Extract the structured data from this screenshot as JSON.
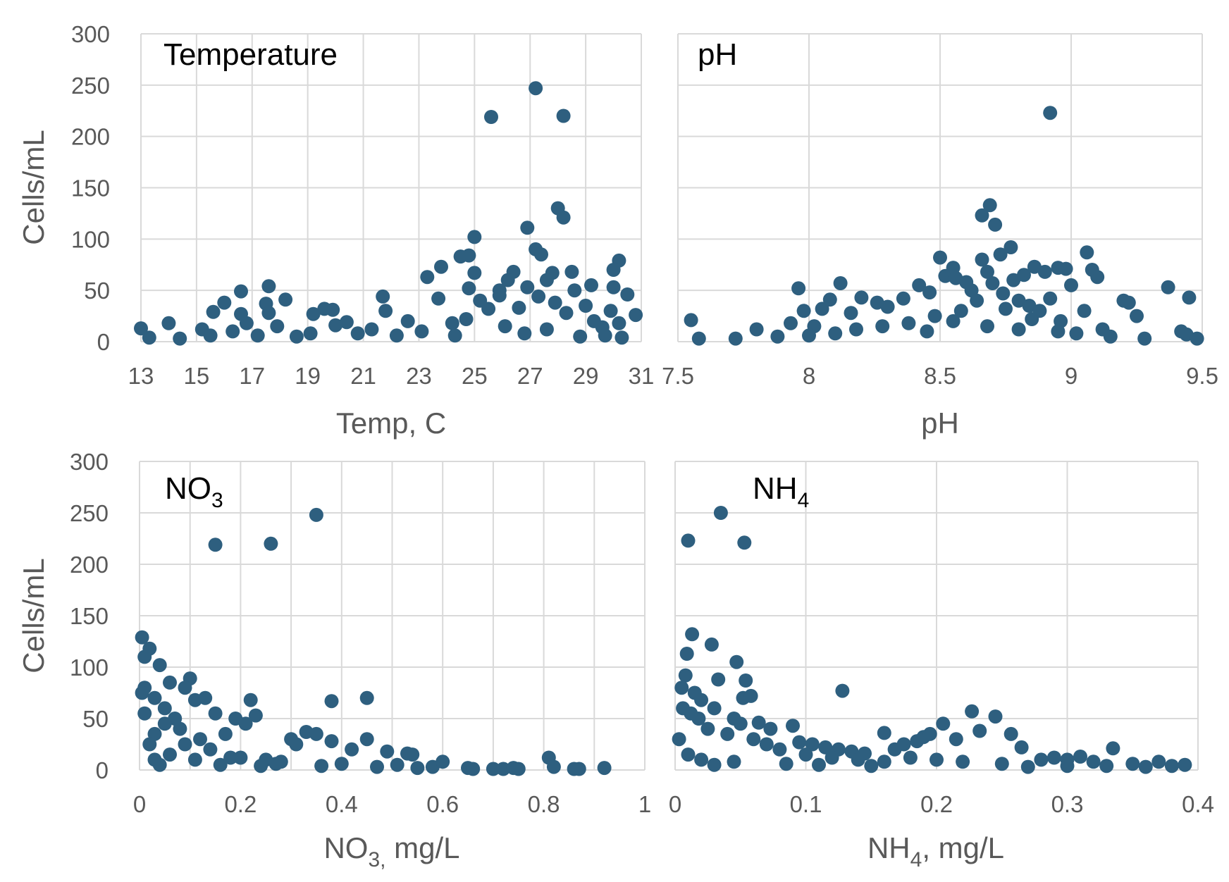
{
  "ylabel": "Cells/mL",
  "colors": {
    "marker": "#2e5f7f",
    "grid": "#d9d9d9",
    "tick": "#595959"
  },
  "chart_data": [
    {
      "type": "scatter",
      "title": "Temperature",
      "xlabel": "Temp, C",
      "ylabel": "Cells/mL",
      "xlim": [
        13,
        31
      ],
      "ylim": [
        0,
        300
      ],
      "xticks": [
        13,
        15,
        17,
        19,
        21,
        23,
        25,
        27,
        29,
        31
      ],
      "yticks": [
        0,
        50,
        100,
        150,
        200,
        250,
        300
      ],
      "grid": true,
      "points": [
        [
          27.2,
          247
        ],
        [
          25.6,
          219
        ],
        [
          28.2,
          220
        ],
        [
          28,
          130
        ],
        [
          28.2,
          121
        ],
        [
          26.9,
          111
        ],
        [
          27.2,
          90
        ],
        [
          27.4,
          85
        ],
        [
          25,
          102
        ],
        [
          24.5,
          83
        ],
        [
          24.8,
          84
        ],
        [
          23.8,
          73
        ],
        [
          23.3,
          63
        ],
        [
          25,
          67
        ],
        [
          26.4,
          68
        ],
        [
          27.8,
          67
        ],
        [
          28.5,
          68
        ],
        [
          29.2,
          55
        ],
        [
          30.2,
          79
        ],
        [
          30.5,
          46
        ],
        [
          30.8,
          26
        ],
        [
          30,
          70
        ],
        [
          30,
          53
        ],
        [
          26.2,
          60
        ],
        [
          25.9,
          50
        ],
        [
          24.8,
          52
        ],
        [
          23.7,
          42
        ],
        [
          22.6,
          20
        ],
        [
          21.7,
          44
        ],
        [
          21.8,
          30
        ],
        [
          19.9,
          31
        ],
        [
          19.6,
          32
        ],
        [
          20,
          16
        ],
        [
          20.4,
          19
        ],
        [
          19.2,
          27
        ],
        [
          18.2,
          41
        ],
        [
          17.6,
          54
        ],
        [
          17.5,
          37
        ],
        [
          17.6,
          28
        ],
        [
          17.9,
          15
        ],
        [
          16.6,
          49
        ],
        [
          16.6,
          27
        ],
        [
          16.8,
          18
        ],
        [
          16,
          38
        ],
        [
          15.6,
          29
        ],
        [
          15.2,
          12
        ],
        [
          14,
          18
        ],
        [
          13,
          13
        ],
        [
          13.3,
          4
        ],
        [
          14.4,
          3
        ],
        [
          15.5,
          6
        ],
        [
          16.3,
          10
        ],
        [
          18.6,
          5
        ],
        [
          20.8,
          8
        ],
        [
          22.2,
          6
        ],
        [
          23.1,
          10
        ],
        [
          24.2,
          18
        ],
        [
          24.7,
          22
        ],
        [
          25.5,
          32
        ],
        [
          25.2,
          40
        ],
        [
          25.9,
          45
        ],
        [
          26.6,
          33
        ],
        [
          26.9,
          53
        ],
        [
          27.3,
          44
        ],
        [
          27.6,
          60
        ],
        [
          27.9,
          38
        ],
        [
          28.3,
          28
        ],
        [
          28.6,
          50
        ],
        [
          29,
          35
        ],
        [
          29.3,
          20
        ],
        [
          29.6,
          14
        ],
        [
          29.9,
          30
        ],
        [
          30.2,
          18
        ],
        [
          26.1,
          15
        ],
        [
          26.8,
          8
        ],
        [
          27.6,
          12
        ],
        [
          28.8,
          5
        ],
        [
          29.7,
          6
        ],
        [
          30.3,
          4
        ],
        [
          24.3,
          6
        ],
        [
          21.3,
          12
        ],
        [
          19.1,
          8
        ],
        [
          17.2,
          6
        ]
      ]
    },
    {
      "type": "scatter",
      "title": "pH",
      "xlabel": "pH",
      "ylabel": "",
      "xlim": [
        7.5,
        9.5
      ],
      "ylim": [
        0,
        300
      ],
      "xticks": [
        7.5,
        8,
        8.5,
        9,
        9.5
      ],
      "yticks": [
        0,
        50,
        100,
        150,
        200,
        250,
        300
      ],
      "grid": true,
      "points": [
        [
          8.92,
          223
        ],
        [
          8.69,
          133
        ],
        [
          8.66,
          123
        ],
        [
          8.71,
          114
        ],
        [
          8.77,
          92
        ],
        [
          8.66,
          80
        ],
        [
          8.5,
          82
        ],
        [
          8.55,
          72
        ],
        [
          8.68,
          68
        ],
        [
          8.73,
          85
        ],
        [
          8.78,
          60
        ],
        [
          8.82,
          65
        ],
        [
          8.86,
          73
        ],
        [
          8.9,
          68
        ],
        [
          8.95,
          72
        ],
        [
          8.98,
          71
        ],
        [
          9.06,
          87
        ],
        [
          9.08,
          70
        ],
        [
          9.1,
          63
        ],
        [
          9.0,
          55
        ],
        [
          9.05,
          30
        ],
        [
          9.2,
          40
        ],
        [
          9.22,
          38
        ],
        [
          9.25,
          25
        ],
        [
          9.37,
          53
        ],
        [
          9.45,
          43
        ],
        [
          9.42,
          10
        ],
        [
          9.44,
          7
        ],
        [
          9.48,
          3
        ],
        [
          9.28,
          3
        ],
        [
          9.15,
          5
        ],
        [
          7.55,
          21
        ],
        [
          7.58,
          3
        ],
        [
          7.72,
          3
        ],
        [
          7.8,
          12
        ],
        [
          7.88,
          5
        ],
        [
          7.93,
          18
        ],
        [
          7.96,
          52
        ],
        [
          7.98,
          30
        ],
        [
          8.02,
          15
        ],
        [
          8.05,
          32
        ],
        [
          8.08,
          41
        ],
        [
          8.12,
          57
        ],
        [
          8.16,
          28
        ],
        [
          8.2,
          43
        ],
        [
          8.26,
          38
        ],
        [
          8.3,
          34
        ],
        [
          8.36,
          42
        ],
        [
          8.42,
          55
        ],
        [
          8.46,
          48
        ],
        [
          8.52,
          64
        ],
        [
          8.56,
          62
        ],
        [
          8.6,
          58
        ],
        [
          8.62,
          50
        ],
        [
          8.7,
          57
        ],
        [
          8.74,
          47
        ],
        [
          8.8,
          40
        ],
        [
          8.84,
          35
        ],
        [
          8.88,
          30
        ],
        [
          8.92,
          42
        ],
        [
          8.96,
          20
        ],
        [
          8.58,
          30
        ],
        [
          8.48,
          25
        ],
        [
          8.38,
          18
        ],
        [
          8.28,
          15
        ],
        [
          8.18,
          12
        ],
        [
          8.1,
          8
        ],
        [
          8.0,
          6
        ],
        [
          8.64,
          40
        ],
        [
          8.75,
          32
        ],
        [
          8.85,
          22
        ],
        [
          8.95,
          10
        ],
        [
          9.02,
          8
        ],
        [
          9.12,
          12
        ],
        [
          8.55,
          20
        ],
        [
          8.45,
          10
        ],
        [
          8.68,
          15
        ],
        [
          8.8,
          12
        ]
      ]
    },
    {
      "type": "scatter",
      "title": "NO3",
      "xlabel": "NO3, mg/L",
      "ylabel": "Cells/mL",
      "xlim": [
        0,
        1
      ],
      "ylim": [
        0,
        300
      ],
      "xticks": [
        0,
        0.2,
        0.4,
        0.6,
        0.8,
        1
      ],
      "yticks": [
        0,
        50,
        100,
        150,
        200,
        250,
        300
      ],
      "grid": true,
      "points": [
        [
          0.35,
          248
        ],
        [
          0.26,
          220
        ],
        [
          0.15,
          219
        ],
        [
          0.005,
          129
        ],
        [
          0.02,
          118
        ],
        [
          0.01,
          110
        ],
        [
          0.04,
          102
        ],
        [
          0.06,
          85
        ],
        [
          0.1,
          89
        ],
        [
          0.09,
          80
        ],
        [
          0.11,
          68
        ],
        [
          0.13,
          70
        ],
        [
          0.01,
          80
        ],
        [
          0.005,
          75
        ],
        [
          0.03,
          70
        ],
        [
          0.05,
          60
        ],
        [
          0.15,
          55
        ],
        [
          0.22,
          68
        ],
        [
          0.23,
          53
        ],
        [
          0.19,
          50
        ],
        [
          0.21,
          45
        ],
        [
          0.17,
          35
        ],
        [
          0.38,
          67
        ],
        [
          0.45,
          70
        ],
        [
          0.33,
          37
        ],
        [
          0.35,
          35
        ],
        [
          0.3,
          30
        ],
        [
          0.31,
          25
        ],
        [
          0.38,
          28
        ],
        [
          0.45,
          30
        ],
        [
          0.42,
          20
        ],
        [
          0.49,
          18
        ],
        [
          0.53,
          16
        ],
        [
          0.54,
          15
        ],
        [
          0.58,
          3
        ],
        [
          0.6,
          8
        ],
        [
          0.65,
          2
        ],
        [
          0.66,
          1
        ],
        [
          0.7,
          1
        ],
        [
          0.72,
          1
        ],
        [
          0.74,
          2
        ],
        [
          0.75,
          1
        ],
        [
          0.81,
          12
        ],
        [
          0.82,
          3
        ],
        [
          0.86,
          1
        ],
        [
          0.87,
          1
        ],
        [
          0.92,
          2
        ],
        [
          0.55,
          2
        ],
        [
          0.51,
          5
        ],
        [
          0.4,
          6
        ],
        [
          0.28,
          8
        ],
        [
          0.25,
          10
        ],
        [
          0.2,
          12
        ],
        [
          0.14,
          20
        ],
        [
          0.12,
          30
        ],
        [
          0.08,
          40
        ],
        [
          0.07,
          50
        ],
        [
          0.05,
          45
        ],
        [
          0.03,
          35
        ],
        [
          0.02,
          25
        ],
        [
          0.01,
          55
        ],
        [
          0.06,
          15
        ],
        [
          0.09,
          25
        ],
        [
          0.11,
          10
        ],
        [
          0.16,
          5
        ],
        [
          0.24,
          4
        ],
        [
          0.36,
          4
        ],
        [
          0.47,
          3
        ],
        [
          0.03,
          10
        ],
        [
          0.04,
          5
        ],
        [
          0.18,
          12
        ],
        [
          0.27,
          6
        ]
      ]
    },
    {
      "type": "scatter",
      "title": "NH4",
      "xlabel": "NH4, mg/L",
      "ylabel": "",
      "xlim": [
        0,
        0.4
      ],
      "ylim": [
        0,
        300
      ],
      "xticks": [
        0,
        0.1,
        0.2,
        0.3,
        0.4
      ],
      "yticks": [
        0,
        50,
        100,
        150,
        200,
        250,
        300
      ],
      "grid": true,
      "points": [
        [
          0.035,
          250
        ],
        [
          0.01,
          223
        ],
        [
          0.053,
          221
        ],
        [
          0.013,
          132
        ],
        [
          0.028,
          122
        ],
        [
          0.009,
          113
        ],
        [
          0.047,
          105
        ],
        [
          0.008,
          92
        ],
        [
          0.033,
          88
        ],
        [
          0.054,
          87
        ],
        [
          0.052,
          70
        ],
        [
          0.058,
          72
        ],
        [
          0.015,
          75
        ],
        [
          0.005,
          80
        ],
        [
          0.02,
          68
        ],
        [
          0.03,
          60
        ],
        [
          0.045,
          50
        ],
        [
          0.05,
          45
        ],
        [
          0.064,
          46
        ],
        [
          0.073,
          40
        ],
        [
          0.09,
          43
        ],
        [
          0.128,
          77
        ],
        [
          0.095,
          27
        ],
        [
          0.105,
          25
        ],
        [
          0.115,
          22
        ],
        [
          0.125,
          20
        ],
        [
          0.135,
          18
        ],
        [
          0.145,
          16
        ],
        [
          0.16,
          36
        ],
        [
          0.168,
          20
        ],
        [
          0.175,
          25
        ],
        [
          0.185,
          28
        ],
        [
          0.19,
          32
        ],
        [
          0.195,
          35
        ],
        [
          0.205,
          45
        ],
        [
          0.215,
          30
        ],
        [
          0.227,
          57
        ],
        [
          0.233,
          38
        ],
        [
          0.245,
          52
        ],
        [
          0.257,
          35
        ],
        [
          0.265,
          22
        ],
        [
          0.28,
          10
        ],
        [
          0.29,
          12
        ],
        [
          0.3,
          10
        ],
        [
          0.31,
          13
        ],
        [
          0.32,
          8
        ],
        [
          0.335,
          21
        ],
        [
          0.35,
          6
        ],
        [
          0.37,
          8
        ],
        [
          0.38,
          4
        ],
        [
          0.39,
          5
        ],
        [
          0.36,
          3
        ],
        [
          0.33,
          4
        ],
        [
          0.3,
          4
        ],
        [
          0.27,
          3
        ],
        [
          0.25,
          6
        ],
        [
          0.22,
          8
        ],
        [
          0.2,
          10
        ],
        [
          0.18,
          12
        ],
        [
          0.16,
          8
        ],
        [
          0.14,
          10
        ],
        [
          0.12,
          12
        ],
        [
          0.1,
          15
        ],
        [
          0.08,
          20
        ],
        [
          0.07,
          25
        ],
        [
          0.06,
          30
        ],
        [
          0.04,
          35
        ],
        [
          0.025,
          40
        ],
        [
          0.018,
          50
        ],
        [
          0.012,
          55
        ],
        [
          0.006,
          60
        ],
        [
          0.003,
          30
        ],
        [
          0.01,
          15
        ],
        [
          0.02,
          10
        ],
        [
          0.03,
          5
        ],
        [
          0.045,
          8
        ],
        [
          0.085,
          6
        ],
        [
          0.11,
          5
        ],
        [
          0.15,
          4
        ]
      ]
    }
  ]
}
